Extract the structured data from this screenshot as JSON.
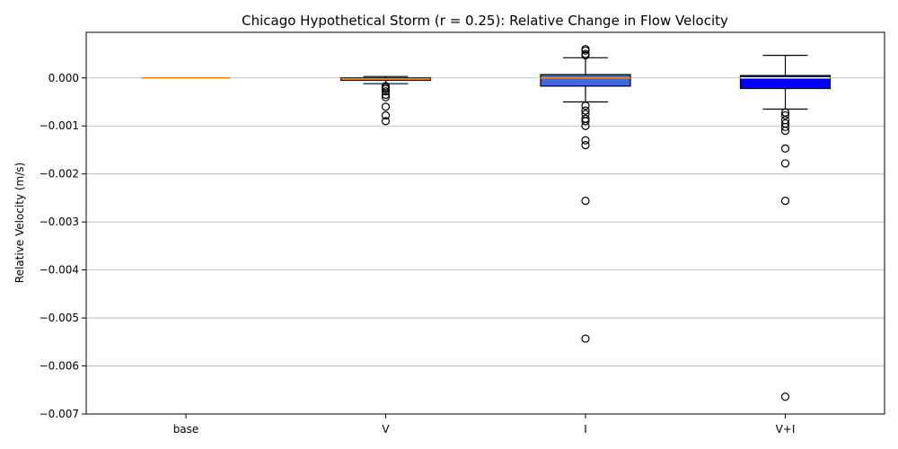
{
  "chart_data": {
    "type": "box",
    "title": "Chicago Hypothetical Storm (r = 0.25): Relative Change in Flow Velocity",
    "xlabel": "",
    "ylabel": "Relative Velocity (m/s)",
    "ylim": [
      -0.007,
      0.00095
    ],
    "yticks": [
      0.0,
      -0.001,
      -0.002,
      -0.003,
      -0.004,
      -0.005,
      -0.006,
      -0.007
    ],
    "ytick_labels": [
      "0.000",
      "−0.001",
      "−0.002",
      "−0.003",
      "−0.004",
      "−0.005",
      "−0.006",
      "−0.007"
    ],
    "grid": "horizontal",
    "categories": [
      "base",
      "V",
      "I",
      "V+I"
    ],
    "boxes": [
      {
        "label": "base",
        "q1": 0.0,
        "median": 0.0,
        "q3": 0.0,
        "whisker_low": 0.0,
        "whisker_high": 0.0,
        "fliers": [],
        "color": "#ff8c00",
        "median_color": "#ff8c00"
      },
      {
        "label": "V",
        "q1": -5e-05,
        "median": -2e-05,
        "q3": 0.0,
        "whisker_low": -0.00012,
        "whisker_high": 3e-05,
        "fliers": [
          -0.00017,
          -0.0002,
          -0.00023,
          -0.00028,
          -0.00035,
          -0.0004,
          -0.0006,
          -0.00078,
          -0.0009
        ],
        "color": "#ff8c00",
        "median_color": "#ff8c00"
      },
      {
        "label": "I",
        "q1": -0.00017,
        "median": 0.0,
        "q3": 7e-05,
        "whisker_low": -0.0005,
        "whisker_high": 0.00042,
        "fliers": [
          0.0006,
          0.00057,
          0.0005,
          0.00047,
          -0.00058,
          -0.00068,
          -0.00075,
          -0.00085,
          -0.0009,
          -0.001,
          -0.0013,
          -0.0014,
          -0.00256,
          -0.00543
        ],
        "color": "#4169e1",
        "median_color": "#ff8c00"
      },
      {
        "label": "V+I",
        "q1": -0.00022,
        "median": 0.0,
        "q3": 5e-05,
        "whisker_low": -0.00065,
        "whisker_high": 0.00047,
        "fliers": [
          -0.00072,
          -0.00078,
          -0.00088,
          -0.00095,
          -0.00102,
          -0.0011,
          -0.00147,
          -0.00178,
          -0.00256,
          -0.00664
        ],
        "color": "#0000ff",
        "median_color": "#ffffff"
      }
    ]
  }
}
